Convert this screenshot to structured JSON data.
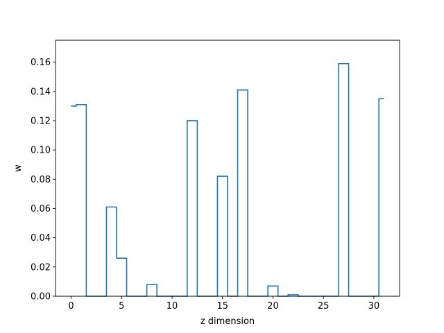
{
  "chart_data": {
    "type": "line",
    "style": "step-mid",
    "title": "",
    "xlabel": "z dimension",
    "ylabel": "w",
    "xlim": [
      -1.55,
      32.55
    ],
    "ylim": [
      0,
      0.175
    ],
    "xticks": [
      0,
      5,
      10,
      15,
      20,
      25,
      30
    ],
    "xtick_labels": [
      "0",
      "5",
      "10",
      "15",
      "20",
      "25",
      "30"
    ],
    "yticks": [
      0,
      0.02,
      0.04,
      0.06,
      0.08,
      0.1,
      0.12,
      0.14,
      0.16
    ],
    "ytick_labels": [
      "0.00",
      "0.02",
      "0.04",
      "0.06",
      "0.08",
      "0.10",
      "0.12",
      "0.14",
      "0.16"
    ],
    "grid": false,
    "legend": "none",
    "series_color": "#1f77b4",
    "x": [
      0,
      1,
      2,
      3,
      4,
      5,
      6,
      7,
      8,
      9,
      10,
      11,
      12,
      13,
      14,
      15,
      16,
      17,
      18,
      19,
      20,
      21,
      22,
      23,
      24,
      25,
      26,
      27,
      28,
      29,
      30,
      31
    ],
    "values": [
      0.13,
      0.131,
      0.0,
      0.0,
      0.061,
      0.026,
      0.0,
      0.0,
      0.008,
      0.0,
      0.0,
      0.0,
      0.12,
      0.0,
      0.0,
      0.082,
      0.0,
      0.141,
      0.0,
      0.0,
      0.007,
      0.0,
      0.001,
      0.0,
      0.0,
      0.0,
      0.0,
      0.159,
      0.0,
      0.0,
      0.0,
      0.135
    ]
  }
}
